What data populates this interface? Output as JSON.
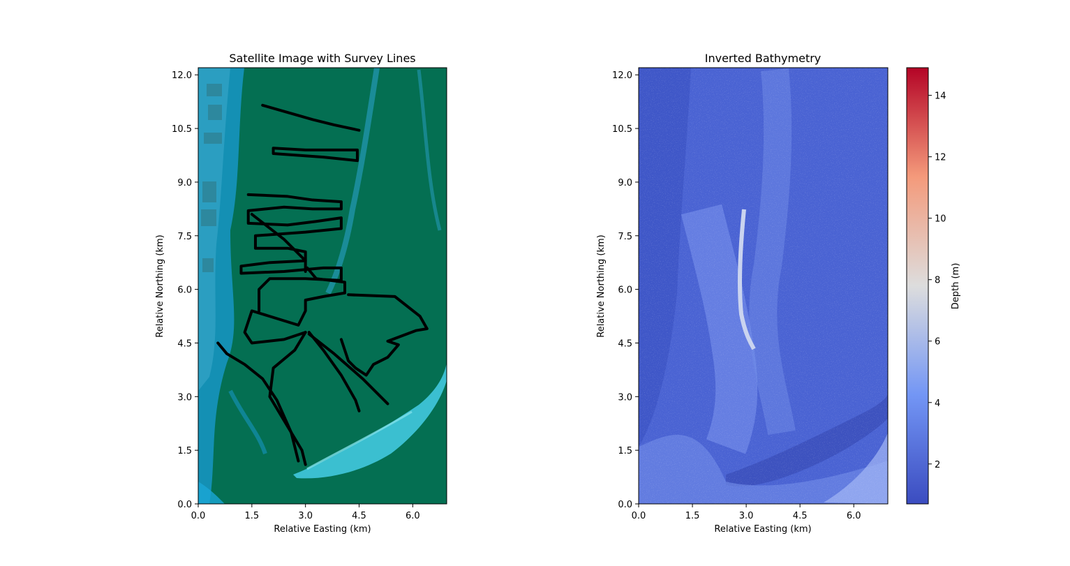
{
  "colors": {
    "background": "#ffffff",
    "sea": "#046f52",
    "shallow": "#1a9bd6",
    "track": "#000000",
    "depth_low": "#3b4cc0",
    "depth_mid": "#dddddd",
    "depth_high": "#b40426"
  },
  "chart_data": [
    {
      "type": "heatmap",
      "title": "Satellite Image with Survey Lines",
      "xlabel": "Relative Easting (km)",
      "ylabel": "Relative Northing (km)",
      "xlim": [
        0,
        6.95
      ],
      "ylim": [
        0,
        12.2
      ],
      "xticks": [
        "0.0",
        "1.5",
        "3.0",
        "4.5",
        "6.0"
      ],
      "yticks": [
        "0.0",
        "1.5",
        "3.0",
        "4.5",
        "6.0",
        "7.5",
        "9.0",
        "10.5",
        "12.0"
      ],
      "grid": false,
      "legend": false,
      "image": "satellite RGB composite",
      "survey_lines": [
        {
          "x": [
            1.8,
            2.5,
            3.2,
            3.8,
            4.5
          ],
          "y": [
            11.15,
            10.95,
            10.75,
            10.6,
            10.45
          ]
        },
        {
          "x": [
            2.1,
            3.0,
            4.45,
            4.45,
            3.5,
            2.1,
            2.1
          ],
          "y": [
            9.95,
            9.9,
            9.9,
            9.6,
            9.7,
            9.8,
            9.95
          ]
        },
        {
          "x": [
            1.4,
            2.5,
            3.2,
            4.0,
            4.0,
            3.2,
            2.4,
            1.4,
            1.4,
            2.5,
            3.3,
            4.0,
            4.0,
            3.0,
            1.6,
            1.6,
            2.5,
            3.0,
            3.0,
            2.0,
            1.6,
            1.2,
            1.2,
            2.4,
            3.5,
            4.0,
            4.0,
            3.0,
            2.0,
            1.7,
            1.7
          ],
          "y": [
            8.65,
            8.6,
            8.5,
            8.45,
            8.25,
            8.25,
            8.3,
            8.2,
            7.85,
            7.8,
            7.9,
            8.0,
            7.7,
            7.6,
            7.5,
            7.15,
            7.15,
            7.05,
            6.8,
            6.75,
            6.7,
            6.65,
            6.45,
            6.5,
            6.6,
            6.6,
            6.25,
            6.3,
            6.3,
            6.0,
            5.4
          ]
        },
        {
          "x": [
            1.5,
            2.4,
            3.0,
            3.0
          ],
          "y": [
            8.1,
            7.4,
            6.8,
            6.5
          ]
        },
        {
          "x": [
            3.05,
            3.3,
            4.1,
            4.1,
            3.5,
            3.0,
            3.0,
            2.8,
            1.5,
            1.3,
            1.5,
            2.4,
            3.0
          ],
          "y": [
            6.6,
            6.3,
            6.2,
            5.9,
            5.8,
            5.7,
            5.4,
            5.0,
            5.4,
            4.8,
            4.5,
            4.6,
            4.8
          ]
        },
        {
          "x": [
            4.2,
            5.5,
            6.2,
            6.4,
            6.1,
            5.3,
            5.6,
            5.3,
            4.9,
            4.7,
            4.4,
            4.2,
            4.0
          ],
          "y": [
            5.85,
            5.8,
            5.25,
            4.9,
            4.85,
            4.55,
            4.45,
            4.1,
            3.9,
            3.6,
            3.8,
            4.0,
            4.6
          ]
        },
        {
          "x": [
            3.0,
            2.7,
            2.1,
            2.0,
            2.3,
            2.9,
            3.0
          ],
          "y": [
            4.8,
            4.3,
            3.8,
            3.0,
            2.5,
            1.5,
            1.1
          ]
        },
        {
          "x": [
            3.1,
            3.5,
            4.0,
            4.4,
            4.5
          ],
          "y": [
            4.8,
            4.3,
            3.6,
            2.9,
            2.6
          ]
        },
        {
          "x": [
            3.1,
            3.8,
            4.6,
            5.1,
            5.3
          ],
          "y": [
            4.75,
            4.2,
            3.5,
            3.0,
            2.8
          ]
        },
        {
          "x": [
            0.55,
            0.8,
            1.3,
            1.8,
            2.2,
            2.6,
            2.8
          ],
          "y": [
            4.5,
            4.2,
            3.9,
            3.5,
            2.9,
            2.0,
            1.2
          ]
        }
      ]
    },
    {
      "type": "heatmap",
      "title": "Inverted Bathymetry",
      "xlabel": "Relative Easting (km)",
      "ylabel": "Relative Northing (km)",
      "xlim": [
        0,
        6.95
      ],
      "ylim": [
        0,
        12.2
      ],
      "xticks": [
        "0.0",
        "1.5",
        "3.0",
        "4.5",
        "6.0"
      ],
      "yticks": [
        "0.0",
        "1.5",
        "3.0",
        "4.5",
        "6.0",
        "7.5",
        "9.0",
        "10.5",
        "12.0"
      ],
      "grid": false,
      "legend": false,
      "colormap": "coolwarm",
      "colorbar": {
        "label": "Depth (m)",
        "range": [
          0.7,
          14.9
        ],
        "ticks": [
          "2",
          "4",
          "6",
          "8",
          "10",
          "12",
          "14"
        ]
      }
    }
  ]
}
